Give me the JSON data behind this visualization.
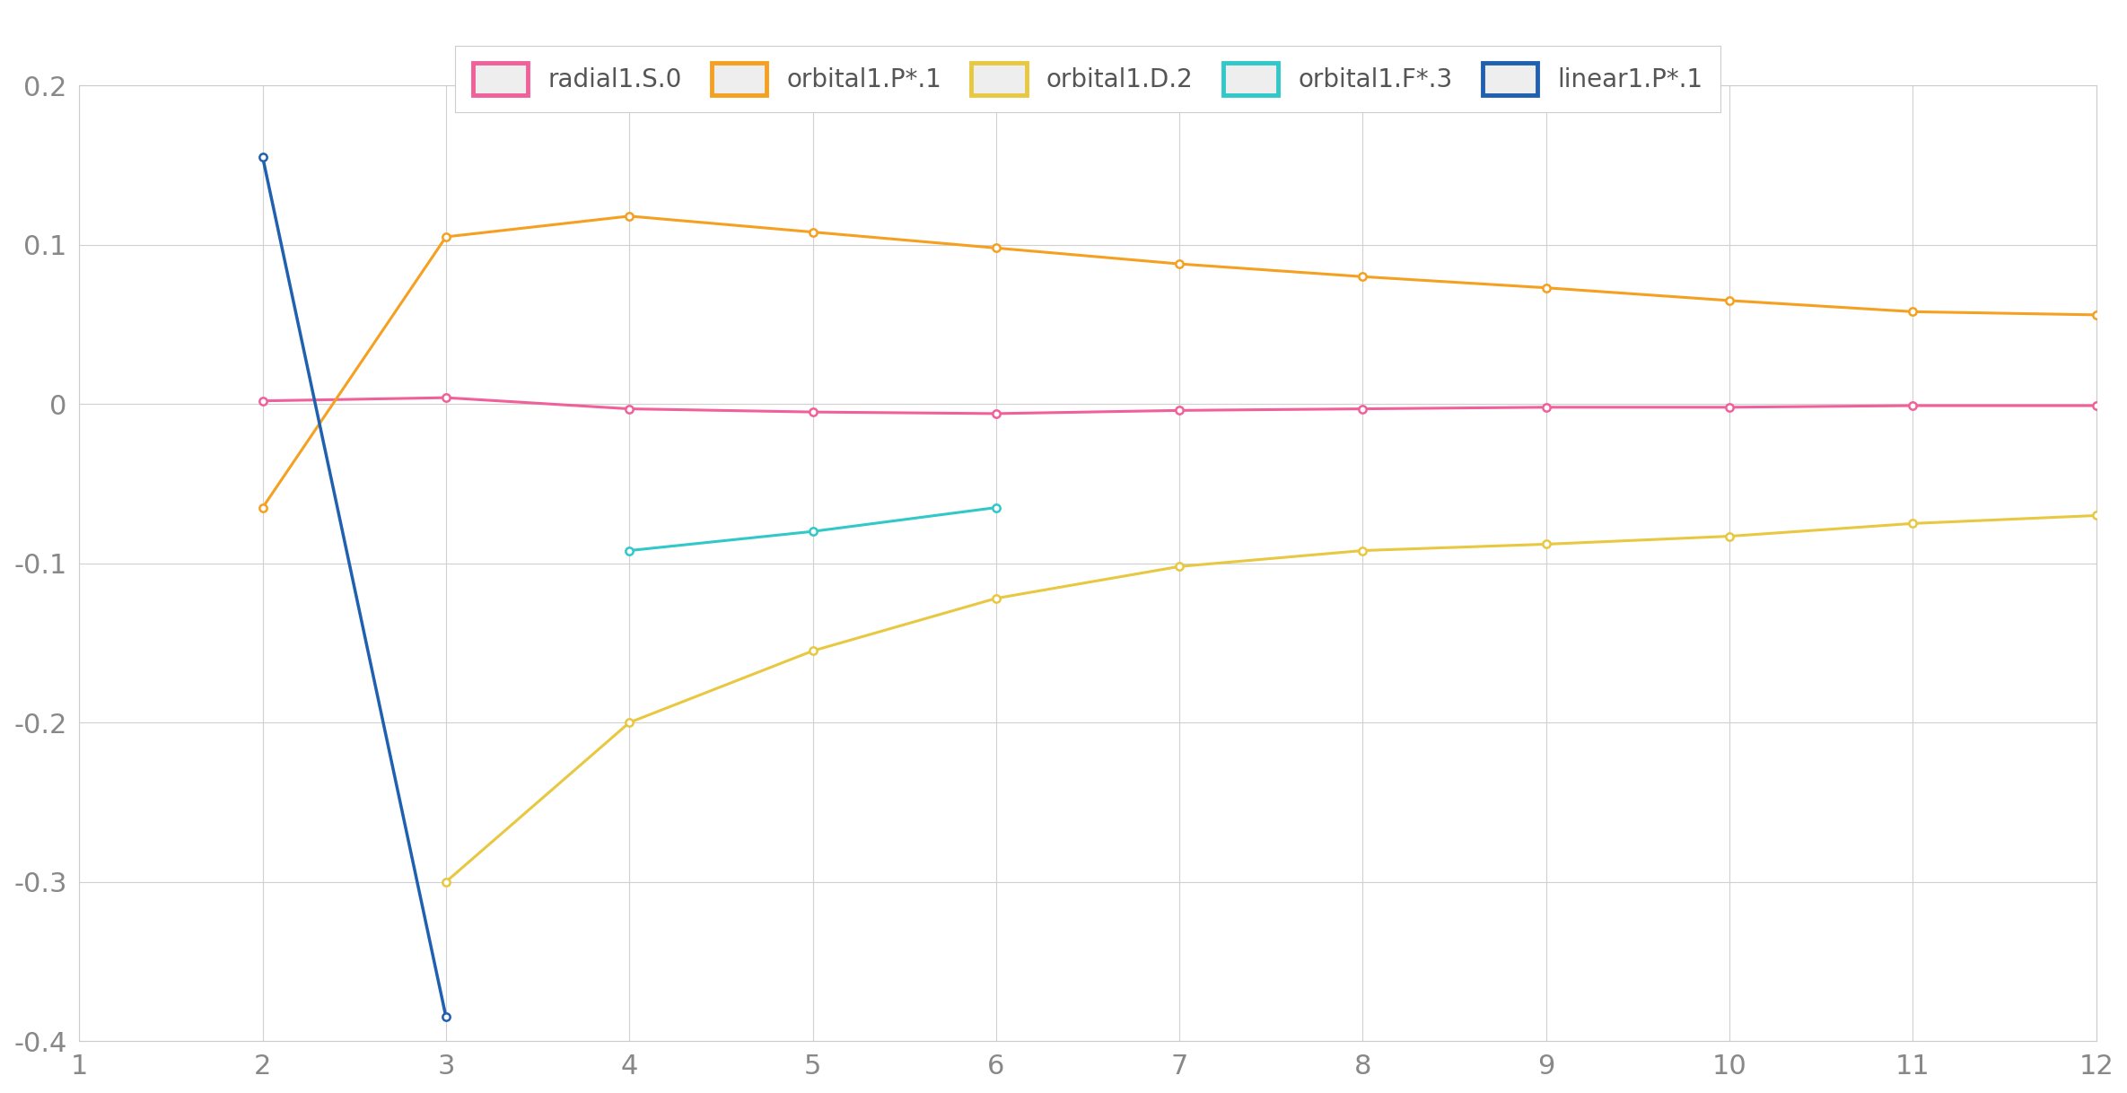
{
  "background_color": "#ffffff",
  "grid_color": "#d0d0d0",
  "xlim": [
    1,
    12
  ],
  "ylim": [
    -0.4,
    0.2
  ],
  "xticks": [
    1,
    2,
    3,
    4,
    5,
    6,
    7,
    8,
    9,
    10,
    11,
    12
  ],
  "yticks": [
    -0.4,
    -0.3,
    -0.2,
    -0.1,
    0,
    0.1,
    0.2
  ],
  "series": [
    {
      "label": "radial1.S.0",
      "color": "#f0609a",
      "linewidth": 2.2,
      "marker": "o",
      "markersize": 6,
      "x": [
        2,
        3,
        4,
        5,
        6,
        7,
        8,
        9,
        10,
        11,
        12
      ],
      "y": [
        0.002,
        0.004,
        -0.003,
        -0.005,
        -0.006,
        -0.004,
        -0.003,
        -0.002,
        -0.002,
        -0.001,
        -0.001
      ]
    },
    {
      "label": "orbital1.P*.1",
      "color": "#f5a020",
      "linewidth": 2.2,
      "marker": "o",
      "markersize": 6,
      "x": [
        2,
        3,
        4,
        5,
        6,
        7,
        8,
        9,
        10,
        11,
        12
      ],
      "y": [
        -0.065,
        0.105,
        0.118,
        0.108,
        0.098,
        0.088,
        0.08,
        0.073,
        0.065,
        0.058,
        0.056
      ]
    },
    {
      "label": "orbital1.D.2",
      "color": "#e8c840",
      "linewidth": 2.2,
      "marker": "o",
      "markersize": 6,
      "x": [
        3,
        4,
        5,
        6,
        7,
        8,
        9,
        10,
        11,
        12
      ],
      "y": [
        -0.3,
        -0.2,
        -0.155,
        -0.122,
        -0.102,
        -0.092,
        -0.088,
        -0.083,
        -0.075,
        -0.07
      ]
    },
    {
      "label": "orbital1.F*.3",
      "color": "#30c8c8",
      "linewidth": 2.2,
      "marker": "o",
      "markersize": 6,
      "x": [
        4,
        5,
        6
      ],
      "y": [
        -0.092,
        -0.08,
        -0.065
      ]
    },
    {
      "label": "linear1.P*.1",
      "color": "#2060b0",
      "linewidth": 2.5,
      "marker": "o",
      "markersize": 6,
      "x": [
        2,
        3
      ],
      "y": [
        0.155,
        -0.385
      ]
    }
  ]
}
